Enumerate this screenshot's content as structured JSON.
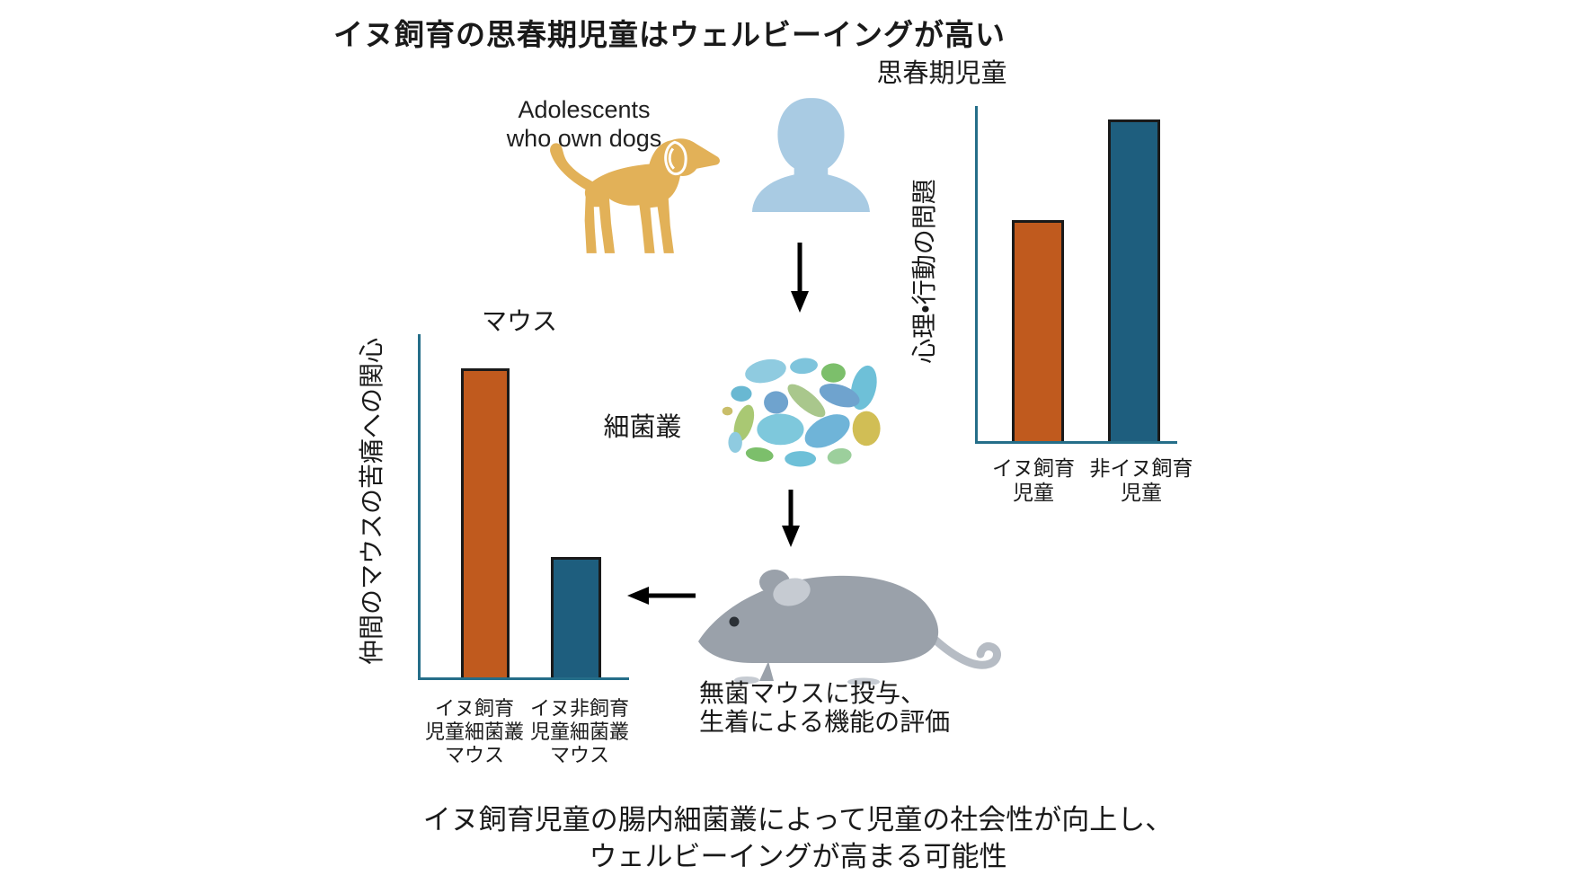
{
  "header": {
    "title": "イヌ飼育の思春期児童はウェルビーイングが高い"
  },
  "flow": {
    "adolescents_label": "Adolescents\nwho own dogs",
    "microbiome_label": "細菌叢",
    "mouse_caption": "無菌マウスに投与、\n生着による機能の評価"
  },
  "conclusion": "イヌ飼育児童の腸内細菌叢によって児童の社会性が向上し、\nウェルビーイングが高まる可能性",
  "icons": {
    "dog": "dog-icon",
    "person": "person-icon",
    "microbiome": "microbiome-icon",
    "mouse": "mouse-icon",
    "arrow_down_1": "arrow-down-icon",
    "arrow_down_2": "arrow-down-icon",
    "arrow_left": "arrow-left-icon"
  },
  "colors": {
    "bar_orange": "#C05A1E",
    "bar_blue": "#1E5E7E",
    "bar_outline": "#1A1A1A",
    "axis_teal": "#256E89",
    "dog": "#E2B158",
    "person": "#A9CBE3",
    "mouse_body": "#9AA1AA",
    "mouse_detail": "#C6CBD2",
    "arrow": "#000000",
    "microbiome_palette": [
      "#8FCBE0",
      "#7EC4DC",
      "#6FA3CE",
      "#7CBF6B",
      "#A9C873",
      "#A9C78C",
      "#6EC0D8",
      "#D1BE55",
      "#9CCF9C"
    ]
  },
  "chart_data": [
    {
      "id": "adolescents",
      "type": "bar",
      "title": "思春期児童",
      "xlabel": "",
      "ylabel": "心理・行動の問題",
      "categories": [
        "イヌ飼育\n児童",
        "非イヌ飼育\n児童"
      ],
      "values": [
        66,
        96
      ],
      "ylim": [
        0,
        100
      ],
      "colors": [
        "#C05A1E",
        "#1E5E7E"
      ],
      "grid": "off",
      "legend": "none",
      "note": "schematic bars, no numeric scale shown; values are relative heights"
    },
    {
      "id": "mice",
      "type": "bar",
      "title": "マウス",
      "xlabel": "",
      "ylabel": "仲間のマウスの苦痛への関心",
      "categories": [
        "イヌ飼育\n児童細菌叢\nマウス",
        "イヌ非飼育\n児童細菌叢\nマウス"
      ],
      "values": [
        90,
        35
      ],
      "ylim": [
        0,
        100
      ],
      "colors": [
        "#C05A1E",
        "#1E5E7E"
      ],
      "grid": "off",
      "legend": "none",
      "note": "schematic bars, no numeric scale shown; values are relative heights"
    }
  ]
}
